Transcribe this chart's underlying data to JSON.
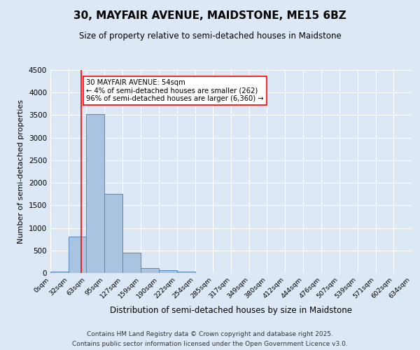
{
  "title": "30, MAYFAIR AVENUE, MAIDSTONE, ME15 6BZ",
  "subtitle": "Size of property relative to semi-detached houses in Maidstone",
  "xlabel": "Distribution of semi-detached houses by size in Maidstone",
  "ylabel": "Number of semi-detached properties",
  "bin_edges": [
    0,
    32,
    63,
    95,
    127,
    159,
    190,
    222,
    254,
    285,
    317,
    349,
    380,
    412,
    444,
    476,
    507,
    539,
    571,
    602,
    634
  ],
  "bin_counts": [
    30,
    800,
    3520,
    1750,
    450,
    110,
    55,
    30,
    0,
    0,
    0,
    0,
    0,
    0,
    0,
    0,
    0,
    0,
    0,
    0
  ],
  "bar_color": "#a8c4e0",
  "bar_edge_color": "#5588bb",
  "vline_x": 54,
  "vline_color": "red",
  "annotation_title": "30 MAYFAIR AVENUE: 54sqm",
  "annotation_line1": "← 4% of semi-detached houses are smaller (262)",
  "annotation_line2": "96% of semi-detached houses are larger (6,360) →",
  "annotation_box_color": "white",
  "annotation_box_edge": "red",
  "ylim": [
    0,
    4500
  ],
  "bg_color": "#dce8f5",
  "grid_color": "white",
  "footnote1": "Contains HM Land Registry data © Crown copyright and database right 2025.",
  "footnote2": "Contains public sector information licensed under the Open Government Licence v3.0."
}
